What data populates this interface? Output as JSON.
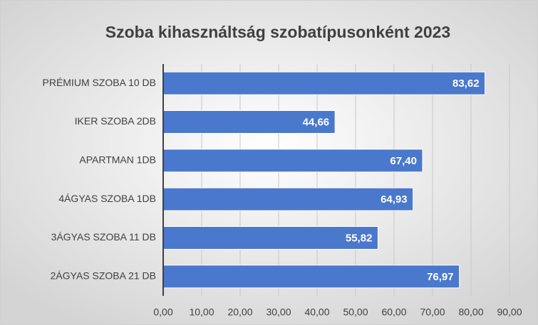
{
  "chart_data": {
    "type": "barh",
    "title": "Szoba kihasználtság szobatípusonként 2023",
    "categories": [
      "PRÉMIUM SZOBA 10 DB",
      "IKER SZOBA 2DB",
      "APARTMAN 1DB",
      "4ÁGYAS SZOBA 1DB",
      "3ÁGYAS SZOBA 11 DB",
      "2ÁGYAS SZOBA 21 DB"
    ],
    "values": [
      83.62,
      44.66,
      67.4,
      64.93,
      55.82,
      76.97
    ],
    "value_labels": [
      "83,62",
      "44,66",
      "67,40",
      "64,93",
      "55,82",
      "76,97"
    ],
    "color": "#4a78cc",
    "xlim": [
      0,
      90
    ],
    "xticks": [
      {
        "value": 0,
        "label": "0,00"
      },
      {
        "value": 10,
        "label": "10,00"
      },
      {
        "value": 20,
        "label": "20,00"
      },
      {
        "value": 30,
        "label": "30,00"
      },
      {
        "value": 40,
        "label": "40,00"
      },
      {
        "value": 50,
        "label": "50,00"
      },
      {
        "value": 60,
        "label": "60,00"
      },
      {
        "value": 70,
        "label": "70,00"
      },
      {
        "value": 80,
        "label": "80,00"
      },
      {
        "value": 90,
        "label": "90,00"
      }
    ],
    "grid": true
  }
}
